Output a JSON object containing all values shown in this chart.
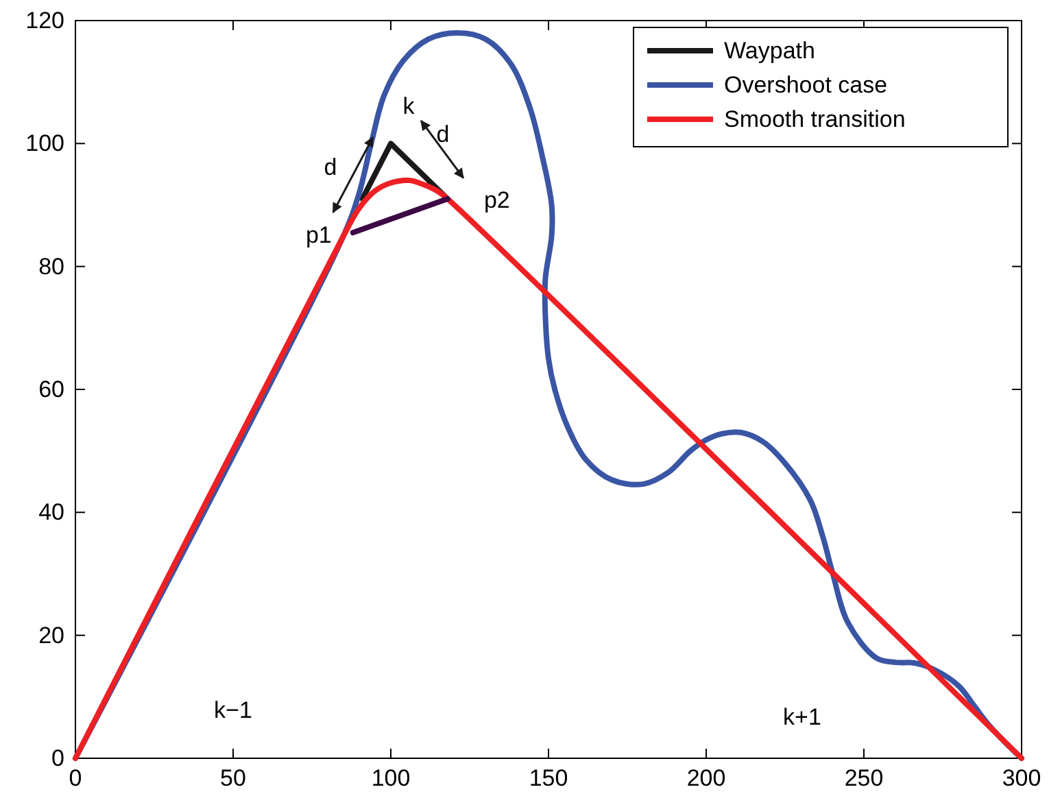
{
  "chart_data": {
    "type": "line",
    "xlim": [
      0,
      300
    ],
    "ylim": [
      0,
      120
    ],
    "xticks": [
      0,
      50,
      100,
      150,
      200,
      250,
      300
    ],
    "yticks": [
      0,
      20,
      40,
      60,
      80,
      100,
      120
    ],
    "grid": false,
    "legend": "top right",
    "marker": "none",
    "line_style": "solid",
    "series": [
      {
        "name": "Waypath",
        "color": "#1a1a1a",
        "x": [
          91,
          100,
          118
        ],
        "values": [
          91,
          100,
          91
        ]
      },
      {
        "name": "Overshoot case",
        "color": "#3a55a4",
        "x": [
          0,
          85,
          90,
          94,
          98,
          104,
          112,
          121,
          130,
          138,
          144,
          148,
          151,
          151,
          149,
          149,
          150,
          152,
          156,
          162,
          170,
          180,
          188,
          195,
          200,
          205,
          211,
          218,
          225,
          233,
          237,
          240,
          245,
          254,
          260,
          266,
          272,
          280,
          285,
          289,
          294,
          300
        ],
        "values": [
          0,
          85,
          92,
          100.5,
          108,
          113.5,
          117,
          118,
          117,
          113,
          106,
          98,
          90,
          85,
          78,
          72,
          65,
          60,
          54,
          48.5,
          45.3,
          44.6,
          46.5,
          50,
          51.8,
          52.8,
          53,
          51.5,
          48,
          42,
          36,
          30.3,
          22,
          16.3,
          15.6,
          15.5,
          14.5,
          11.8,
          8.5,
          5.8,
          3,
          0
        ]
      },
      {
        "name": "Smooth transition",
        "color": "#ee2024",
        "x": [
          0,
          85,
          90,
          95,
          100,
          106,
          110,
          115,
          118,
          300
        ],
        "values": [
          0,
          85,
          89.5,
          92.3,
          93.6,
          94,
          93.4,
          92.2,
          91,
          0
        ]
      },
      {
        "color": "#3d0a45",
        "x": [
          88,
          118
        ],
        "values": [
          85.5,
          91
        ]
      }
    ],
    "annotations": [
      {
        "text": "k",
        "x": 100,
        "y": 100
      },
      "d",
      "d",
      {
        "text": "p1",
        "x": 88,
        "y": 85.5
      },
      {
        "text": "p2",
        "x": 118,
        "y": 91
      },
      "k−1",
      "k+1"
    ]
  }
}
